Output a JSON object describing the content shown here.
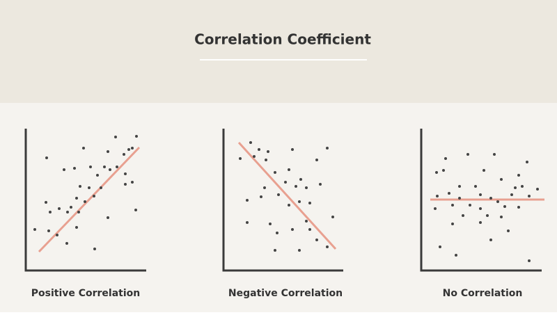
{
  "header": {
    "title": "Correlation Coefficient"
  },
  "panels": [
    {
      "label": "Positive Correlation"
    },
    {
      "label": "Negative Correlation"
    },
    {
      "label": "No Correlation"
    }
  ]
}
